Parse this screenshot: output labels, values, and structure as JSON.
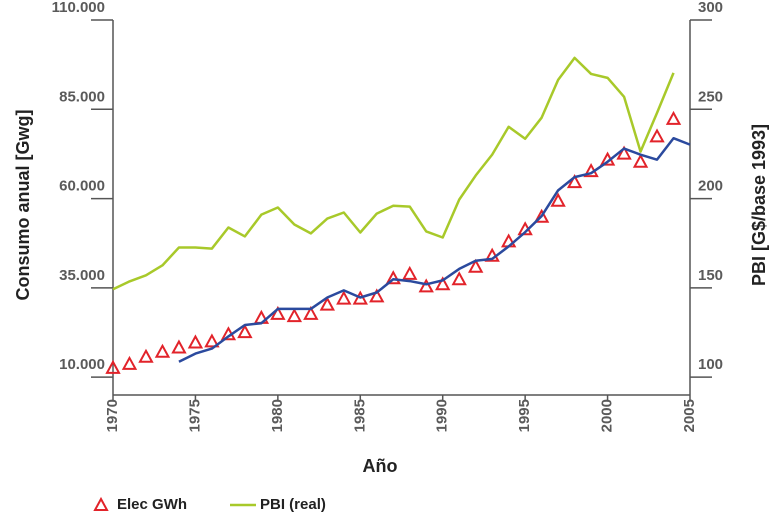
{
  "chart_data": {
    "type": "line",
    "x_label": "Año",
    "y_label": "Consumo anual [Gwg]",
    "y2_label": "PBI [G$/base 1993]",
    "x": [
      1970,
      1971,
      1972,
      1973,
      1974,
      1975,
      1976,
      1977,
      1978,
      1979,
      1980,
      1981,
      1982,
      1983,
      1984,
      1985,
      1986,
      1987,
      1988,
      1989,
      1990,
      1991,
      1992,
      1993,
      1994,
      1995,
      1996,
      1997,
      1998,
      1999,
      2000,
      2001,
      2002,
      2003,
      2004,
      2005
    ],
    "xlim": [
      1970,
      2005
    ],
    "xticks": [
      1970,
      1975,
      1980,
      1985,
      1990,
      1995,
      2000,
      2005
    ],
    "ylim": [
      5000,
      110000
    ],
    "yticks": [
      {
        "value": 10000,
        "label": "10.000"
      },
      {
        "value": 35000,
        "label": "35.000"
      },
      {
        "value": 60000,
        "label": "60.000"
      },
      {
        "value": 85000,
        "label": "85.000"
      },
      {
        "value": 110000,
        "label": "110.000"
      }
    ],
    "y2lim": [
      90,
      300
    ],
    "y2ticks": [
      100,
      150,
      200,
      250,
      300
    ],
    "series": [
      {
        "name": "Elec GWh",
        "color": "#e2232a",
        "marker": "triangle",
        "values": [
          12600,
          13700,
          15700,
          17100,
          18300,
          19700,
          20000,
          22000,
          22600,
          26600,
          27700,
          27100,
          27700,
          30300,
          32000,
          32000,
          32600,
          37700,
          38900,
          35400,
          36000,
          37400,
          40900,
          44000,
          48000,
          51400,
          54900,
          59400,
          64600,
          67700,
          70900,
          72600,
          70300,
          77400,
          82300,
          null
        ]
      },
      {
        "color": "#2b4a9e",
        "marker": "line",
        "values": [
          null,
          null,
          null,
          null,
          14300,
          16600,
          18000,
          21400,
          24600,
          25100,
          29100,
          29100,
          29100,
          32300,
          34300,
          32300,
          33700,
          37400,
          36900,
          36000,
          37100,
          40300,
          42600,
          43100,
          46600,
          50600,
          55100,
          62300,
          66000,
          67100,
          70300,
          74000,
          72300,
          70900,
          76900,
          75100
        ]
      },
      {
        "name": "PBI (real)",
        "color": "#a8c92a",
        "marker": "line",
        "axis": "y2",
        "values": [
          149.2,
          153.6,
          157,
          162.6,
          172.6,
          172.6,
          172,
          183.8,
          178.8,
          191,
          195,
          185.5,
          180.5,
          188.8,
          192.2,
          181,
          191.6,
          196,
          195.5,
          181.6,
          178.2,
          199.4,
          212.9,
          224.6,
          240.2,
          233.5,
          245.3,
          266.5,
          278.8,
          269.8,
          267.6,
          257,
          226.3,
          248,
          270.4,
          null
        ]
      }
    ]
  }
}
